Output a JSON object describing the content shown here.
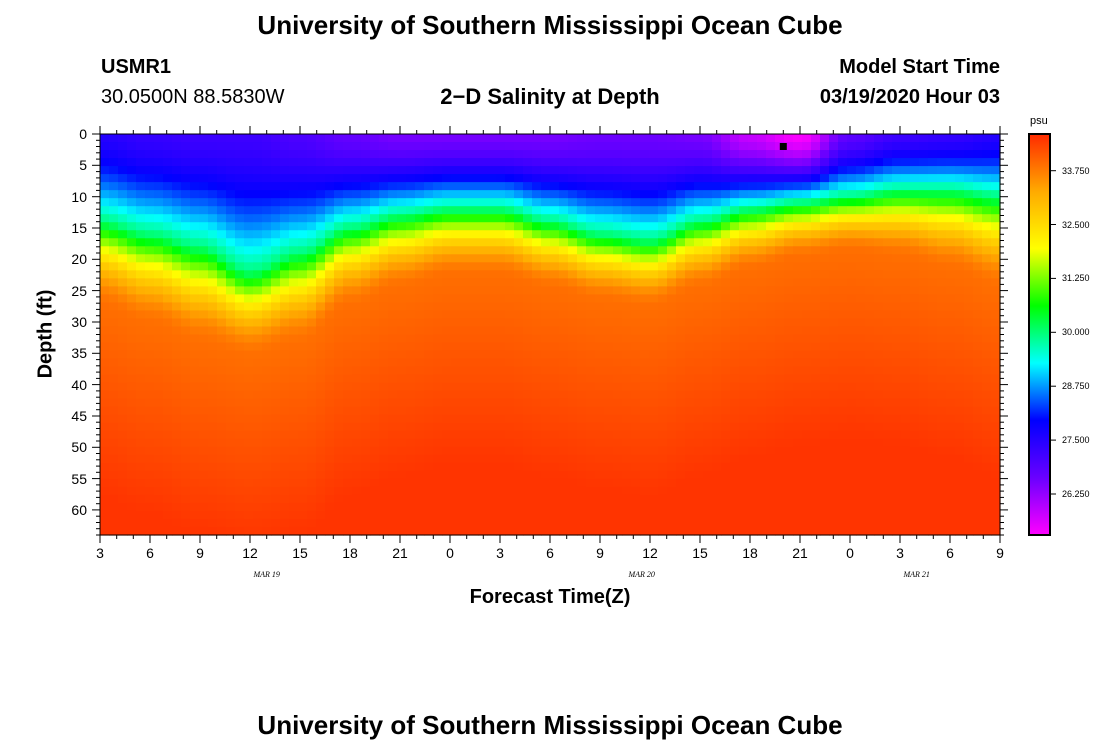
{
  "header": {
    "title": "University of Southern Mississippi Ocean Cube",
    "station_id": "USMR1",
    "station_coords": "30.0500N 88.5830W",
    "plot_title": "2−D Salinity at Depth",
    "model_start_label": "Model Start Time",
    "model_start_value": "03/19/2020 Hour 03"
  },
  "footer": {
    "title": "University of Southern Mississippi Ocean Cube"
  },
  "colors": {
    "colormap": [
      "#ff00ff",
      "#6a00ff",
      "#0000ff",
      "#00ffff",
      "#00ff00",
      "#ffff00",
      "#ffaa00",
      "#ff2a00"
    ]
  },
  "chart_data": {
    "type": "heatmap",
    "title": "2−D Salinity at Depth",
    "xlabel": "Forecast Time(Z)",
    "ylabel": "Depth (ft)",
    "x_tick_labels": [
      "3",
      "6",
      "9",
      "12",
      "15",
      "18",
      "21",
      "0",
      "3",
      "6",
      "9",
      "12",
      "15",
      "18",
      "21",
      "0",
      "3",
      "6",
      "9"
    ],
    "x_hours": [
      3,
      6,
      9,
      12,
      15,
      18,
      21,
      24,
      27,
      30,
      33,
      36,
      39,
      42,
      45,
      48,
      51,
      54,
      57
    ],
    "date_labels": [
      {
        "text": "MAR 19",
        "hour": 13
      },
      {
        "text": "MAR 20",
        "hour": 35.5
      },
      {
        "text": "MAR 21",
        "hour": 52
      }
    ],
    "xlim": [
      3,
      57
    ],
    "ylim": [
      64,
      0
    ],
    "y_ticks": [
      0,
      5,
      10,
      15,
      20,
      25,
      30,
      35,
      40,
      45,
      50,
      55,
      60
    ],
    "y_tick_labels": [
      "0",
      "5",
      "10",
      "15",
      "20",
      "25",
      "30",
      "35",
      "40",
      "45",
      "50",
      "55",
      "60"
    ],
    "colorbar": {
      "unit": "psu",
      "range": [
        25.3,
        34.6
      ],
      "tick_values": [
        33.75,
        32.5,
        31.25,
        30.0,
        28.75,
        27.5,
        26.25
      ],
      "tick_labels": [
        "33.750",
        "32.500",
        "31.250",
        "30.000",
        "28.750",
        "27.500",
        "26.250"
      ]
    },
    "surface_salinity_psu": [
      27.5,
      27.3,
      27.2,
      27.2,
      27.0,
      26.7,
      26.5,
      26.5,
      26.5,
      26.5,
      26.6,
      26.6,
      26.5,
      25.8,
      25.3,
      26.8,
      27.2,
      27.3,
      27.5
    ],
    "halocline_depth_ft": [
      14,
      16,
      18,
      22,
      19,
      15,
      13,
      12,
      12,
      14,
      16,
      17,
      14,
      12,
      11,
      10,
      9,
      9,
      10
    ],
    "deep_depth_ft": [
      28,
      31,
      34,
      36,
      34,
      28,
      25,
      23,
      23,
      25,
      27,
      28,
      25,
      22,
      20,
      19,
      20,
      22,
      25
    ],
    "marker": {
      "hour": 44,
      "depth_ft": 2
    }
  }
}
